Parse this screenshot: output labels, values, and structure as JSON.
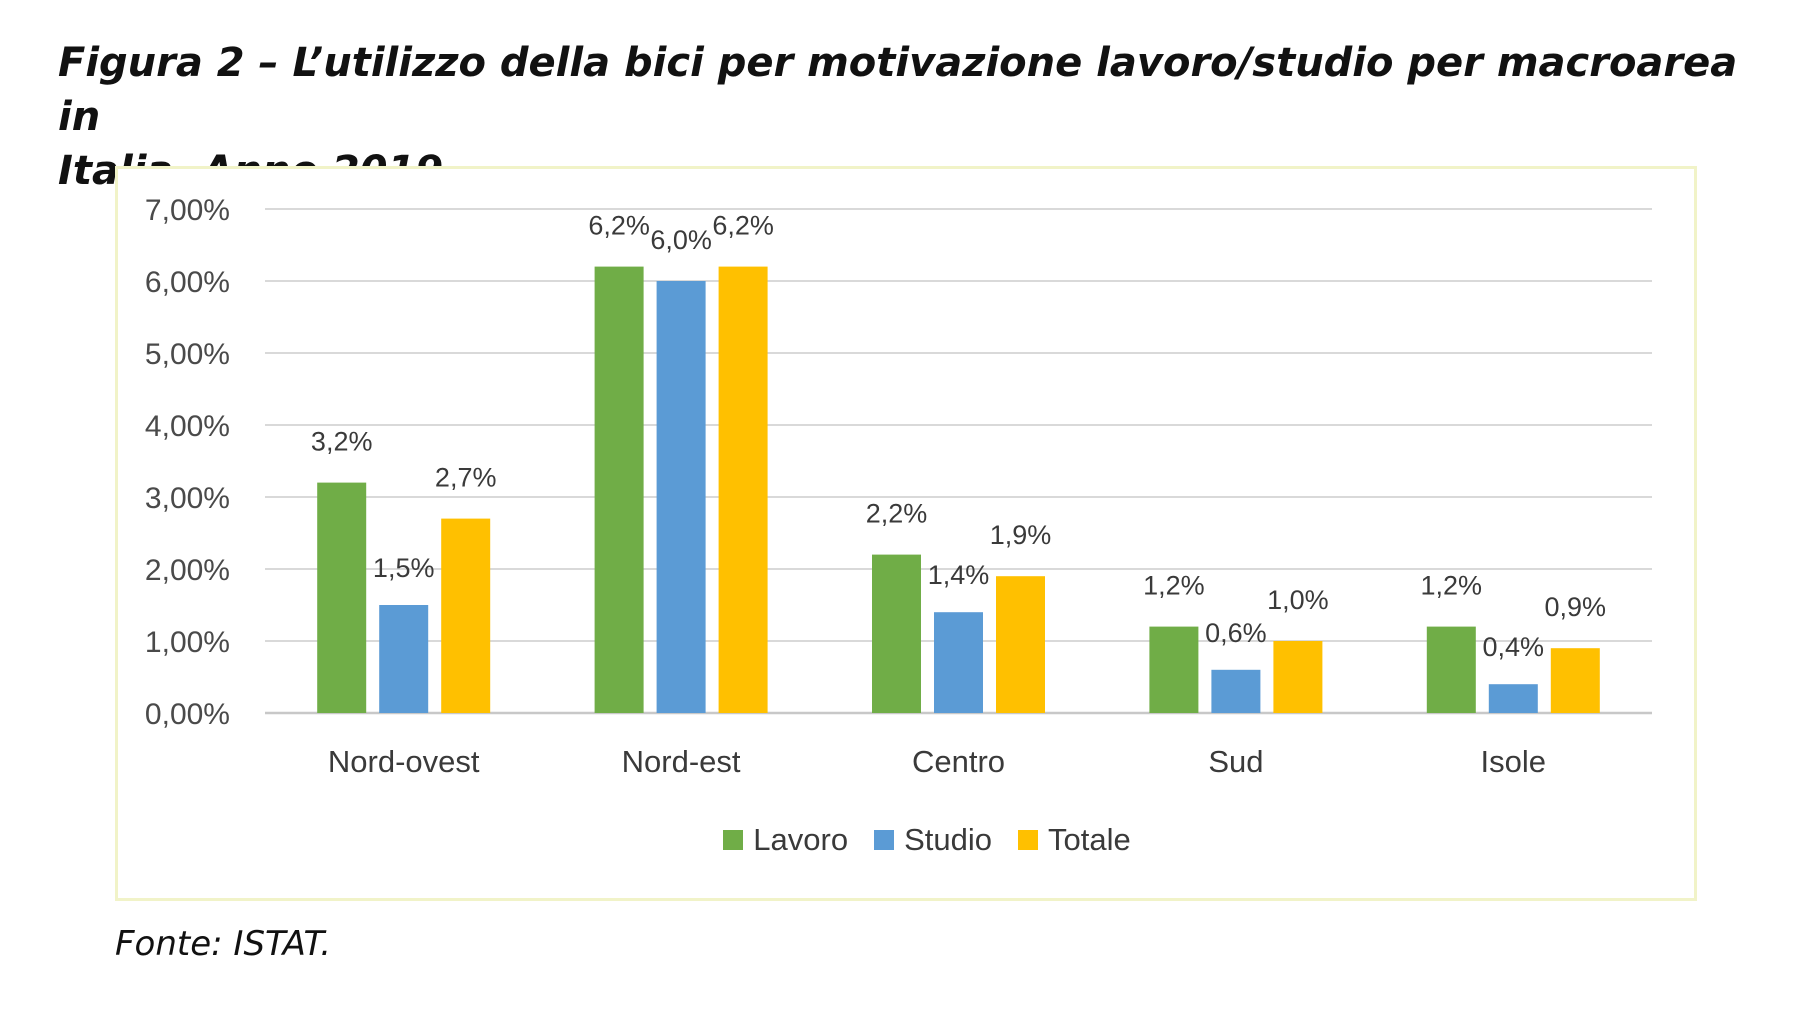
{
  "title": {
    "line1": "Figura 2 – L’utilizzo della bici per motivazione lavoro/studio per macroarea in",
    "line2": "Italia. Anno 2019"
  },
  "source": "Fonte: ISTAT.",
  "chart_data": {
    "type": "bar",
    "title": "",
    "xlabel": "",
    "ylabel": "",
    "categories": [
      "Nord-ovest",
      "Nord-est",
      "Centro",
      "Sud",
      "Isole"
    ],
    "series": [
      {
        "name": "Lavoro",
        "color": "#70ad47",
        "values": [
          3.2,
          6.2,
          2.2,
          1.2,
          1.2
        ],
        "labels": [
          "3,2%",
          "6,2%",
          "2,2%",
          "1,2%",
          "1,2%"
        ]
      },
      {
        "name": "Studio",
        "color": "#5b9bd5",
        "values": [
          1.5,
          6.0,
          1.4,
          0.6,
          0.4
        ],
        "labels": [
          "1,5%",
          "6,0%",
          "1,4%",
          "0,6%",
          "0,4%"
        ]
      },
      {
        "name": "Totale",
        "color": "#ffc000",
        "values": [
          2.7,
          6.2,
          1.9,
          1.0,
          0.9
        ],
        "labels": [
          "2,7%",
          "6,2%",
          "1,9%",
          "1,0%",
          "0,9%"
        ]
      }
    ],
    "ylim": [
      0,
      7
    ],
    "yticks": [
      0,
      1,
      2,
      3,
      4,
      5,
      6,
      7
    ],
    "ytick_labels": [
      "0,00%",
      "1,00%",
      "2,00%",
      "3,00%",
      "4,00%",
      "5,00%",
      "6,00%",
      "7,00%"
    ],
    "grid": true,
    "legend": "bottom-center"
  }
}
